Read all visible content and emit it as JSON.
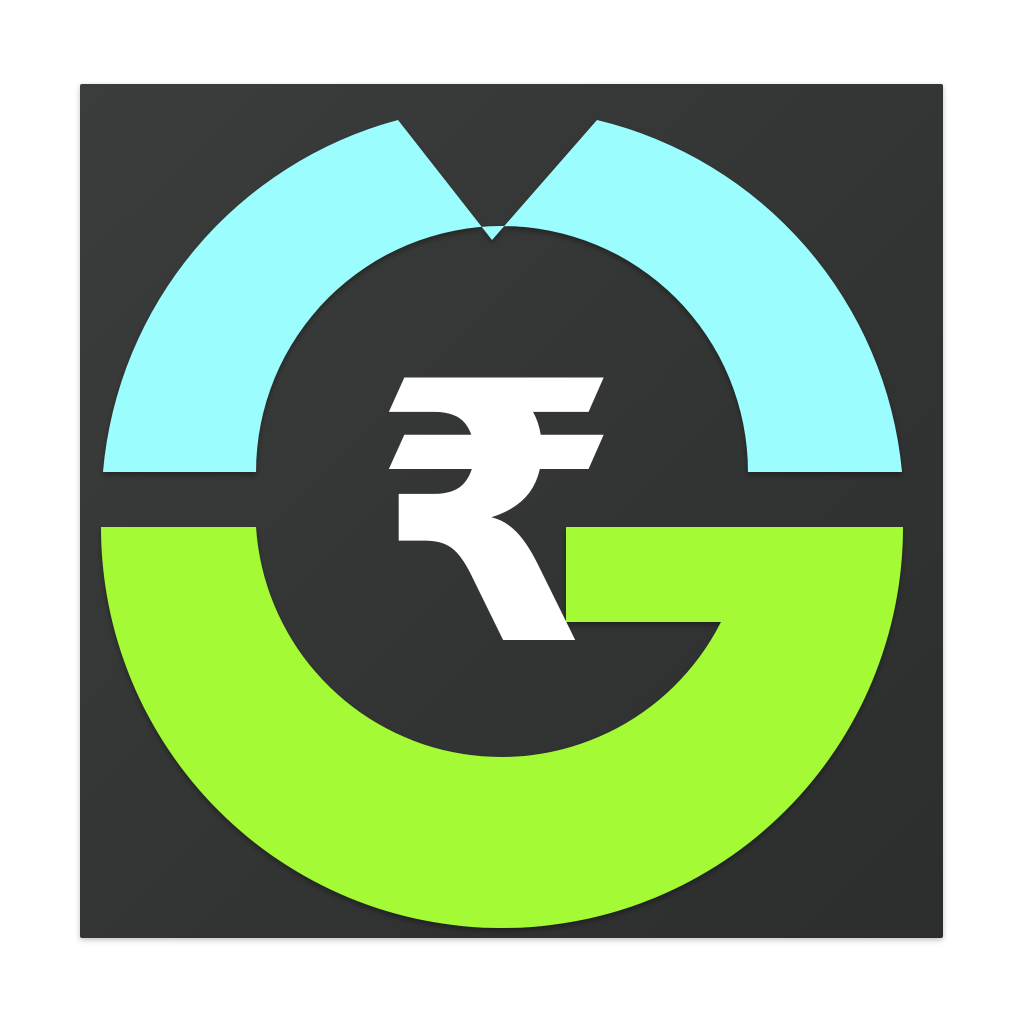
{
  "logo": {
    "description_icon": "rupee-g-logo-icon",
    "symbol": "₹",
    "colors": {
      "background": "#333535",
      "top_arc": "#9bfdfd",
      "bottom_arc": "#a4fb35",
      "symbol": "#ffffff",
      "page": "#ffffff"
    }
  }
}
